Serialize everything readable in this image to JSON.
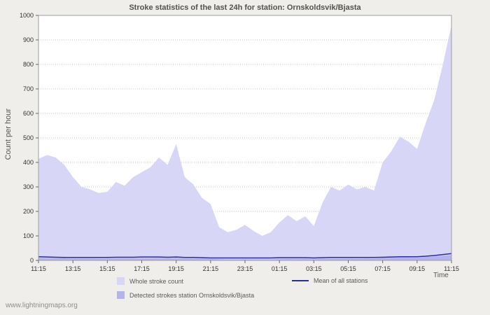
{
  "page": {
    "background": "#f0eeeb",
    "footer_link": "www.lightningmaps.org"
  },
  "chart_data": {
    "type": "area",
    "title": "Stroke statistics of the last 24h for station: Ornskoldsvik/Bjasta",
    "xlabel": "Time",
    "ylabel": "Count per hour",
    "ylim": [
      0,
      1000
    ],
    "ytick_step": 100,
    "grid": true,
    "legend_position": "bottom",
    "x": [
      "11:15",
      "11:45",
      "12:15",
      "12:45",
      "13:15",
      "13:45",
      "14:15",
      "14:45",
      "15:15",
      "15:45",
      "16:15",
      "16:45",
      "17:15",
      "17:45",
      "18:15",
      "18:45",
      "19:15",
      "19:45",
      "20:15",
      "20:45",
      "21:15",
      "21:45",
      "22:15",
      "22:45",
      "23:15",
      "23:45",
      "00:15",
      "00:45",
      "01:15",
      "01:45",
      "02:15",
      "02:45",
      "03:15",
      "03:45",
      "04:15",
      "04:45",
      "05:15",
      "05:45",
      "06:15",
      "06:45",
      "07:15",
      "07:45",
      "08:15",
      "08:45",
      "09:15",
      "09:45",
      "10:15",
      "10:45",
      "11:15"
    ],
    "x_tick_labels": [
      "11:15",
      "13:15",
      "15:15",
      "17:15",
      "19:15",
      "21:15",
      "23:15",
      "01:15",
      "03:15",
      "05:15",
      "07:15",
      "09:15",
      "11:15"
    ],
    "series": [
      {
        "name": "Whole stroke count",
        "type": "area",
        "color": "#d7d6f6",
        "values": [
          415,
          430,
          420,
          390,
          340,
          300,
          290,
          275,
          280,
          320,
          305,
          340,
          360,
          380,
          420,
          390,
          475,
          340,
          310,
          255,
          230,
          135,
          115,
          125,
          145,
          120,
          100,
          115,
          155,
          185,
          160,
          180,
          140,
          235,
          300,
          285,
          310,
          290,
          300,
          285,
          400,
          445,
          505,
          485,
          455,
          560,
          655,
          800,
          960
        ]
      },
      {
        "name": "Detected strokes station Ornskoldsvik/Bjasta",
        "type": "area",
        "color": "#b5b3ec",
        "values": [
          10,
          10,
          9,
          9,
          8,
          8,
          8,
          7,
          7,
          8,
          8,
          8,
          9,
          9,
          10,
          9,
          10,
          8,
          8,
          7,
          6,
          5,
          4,
          4,
          5,
          4,
          4,
          4,
          5,
          6,
          5,
          6,
          5,
          6,
          7,
          7,
          8,
          7,
          8,
          7,
          10,
          11,
          12,
          12,
          11,
          14,
          16,
          19,
          22
        ]
      },
      {
        "name": "Mean of all stations",
        "type": "line",
        "color": "#2b2ba0",
        "values": [
          15,
          14,
          13,
          12,
          12,
          12,
          12,
          12,
          12,
          13,
          13,
          13,
          14,
          14,
          14,
          13,
          14,
          12,
          12,
          11,
          10,
          10,
          10,
          10,
          10,
          10,
          10,
          10,
          11,
          11,
          11,
          11,
          10,
          11,
          12,
          12,
          12,
          12,
          12,
          12,
          13,
          14,
          15,
          15,
          15,
          17,
          20,
          24,
          28
        ]
      }
    ]
  }
}
